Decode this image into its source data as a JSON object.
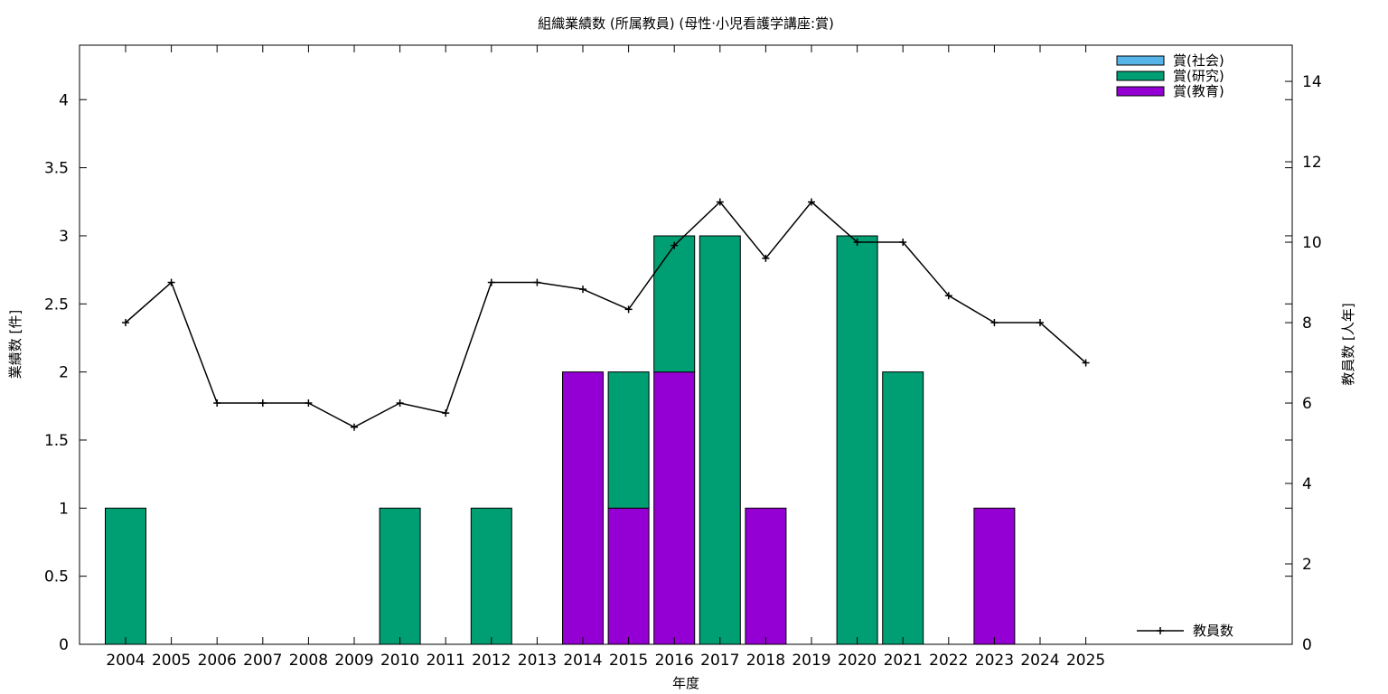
{
  "chart_data": {
    "type": "bar",
    "title": "組織業績数 (所属教員) (母性·小児看護学講座:賞)",
    "xlabel": "年度",
    "ylabel": "業績数 [件]",
    "y2label": "教員数 [人年]",
    "categories": [
      "2004",
      "2005",
      "2006",
      "2007",
      "2008",
      "2009",
      "2010",
      "2011",
      "2012",
      "2013",
      "2014",
      "2015",
      "2016",
      "2017",
      "2018",
      "2019",
      "2020",
      "2021",
      "2022",
      "2023",
      "2024",
      "2025"
    ],
    "ylim": [
      0,
      4.4
    ],
    "y2lim": [
      0,
      14.9
    ],
    "yticks": [
      "0",
      "0.5",
      "1",
      "1.5",
      "2",
      "2.5",
      "3",
      "3.5",
      "4"
    ],
    "y2ticks": [
      "0",
      "2",
      "4",
      "6",
      "8",
      "10",
      "12",
      "14"
    ],
    "stacked": true,
    "grid": false,
    "legend_bars_position": "top-right",
    "legend_line_position": "bottom-right",
    "series": [
      {
        "name": "賞(教育)",
        "color": "#9400d3",
        "values": [
          0,
          0,
          0,
          0,
          0,
          0,
          0,
          0,
          0,
          0,
          2,
          1,
          2,
          0,
          1,
          0,
          0,
          0,
          0,
          1,
          0,
          0
        ]
      },
      {
        "name": "賞(研究)",
        "color": "#009e73",
        "values": [
          1,
          0,
          0,
          0,
          0,
          0,
          1,
          0,
          1,
          0,
          0,
          1,
          1,
          3,
          0,
          0,
          3,
          2,
          0,
          0,
          0,
          0
        ]
      },
      {
        "name": "賞(社会)",
        "color": "#56b4e9",
        "values": [
          0,
          0,
          0,
          0,
          0,
          0,
          0,
          0,
          0,
          0,
          0,
          0,
          0,
          0,
          0,
          0,
          0,
          0,
          0,
          0,
          0,
          0
        ]
      }
    ],
    "legend_order": [
      "賞(社会)",
      "賞(研究)",
      "賞(教育)"
    ],
    "line_series": {
      "name": "教員数",
      "color": "#000000",
      "axis": "right",
      "values": [
        8,
        9,
        6,
        6,
        6,
        5.4,
        6,
        5.75,
        9,
        9,
        8.83,
        8.33,
        9.92,
        11,
        9.6,
        11,
        10,
        10,
        8.67,
        8,
        8,
        7
      ]
    }
  }
}
